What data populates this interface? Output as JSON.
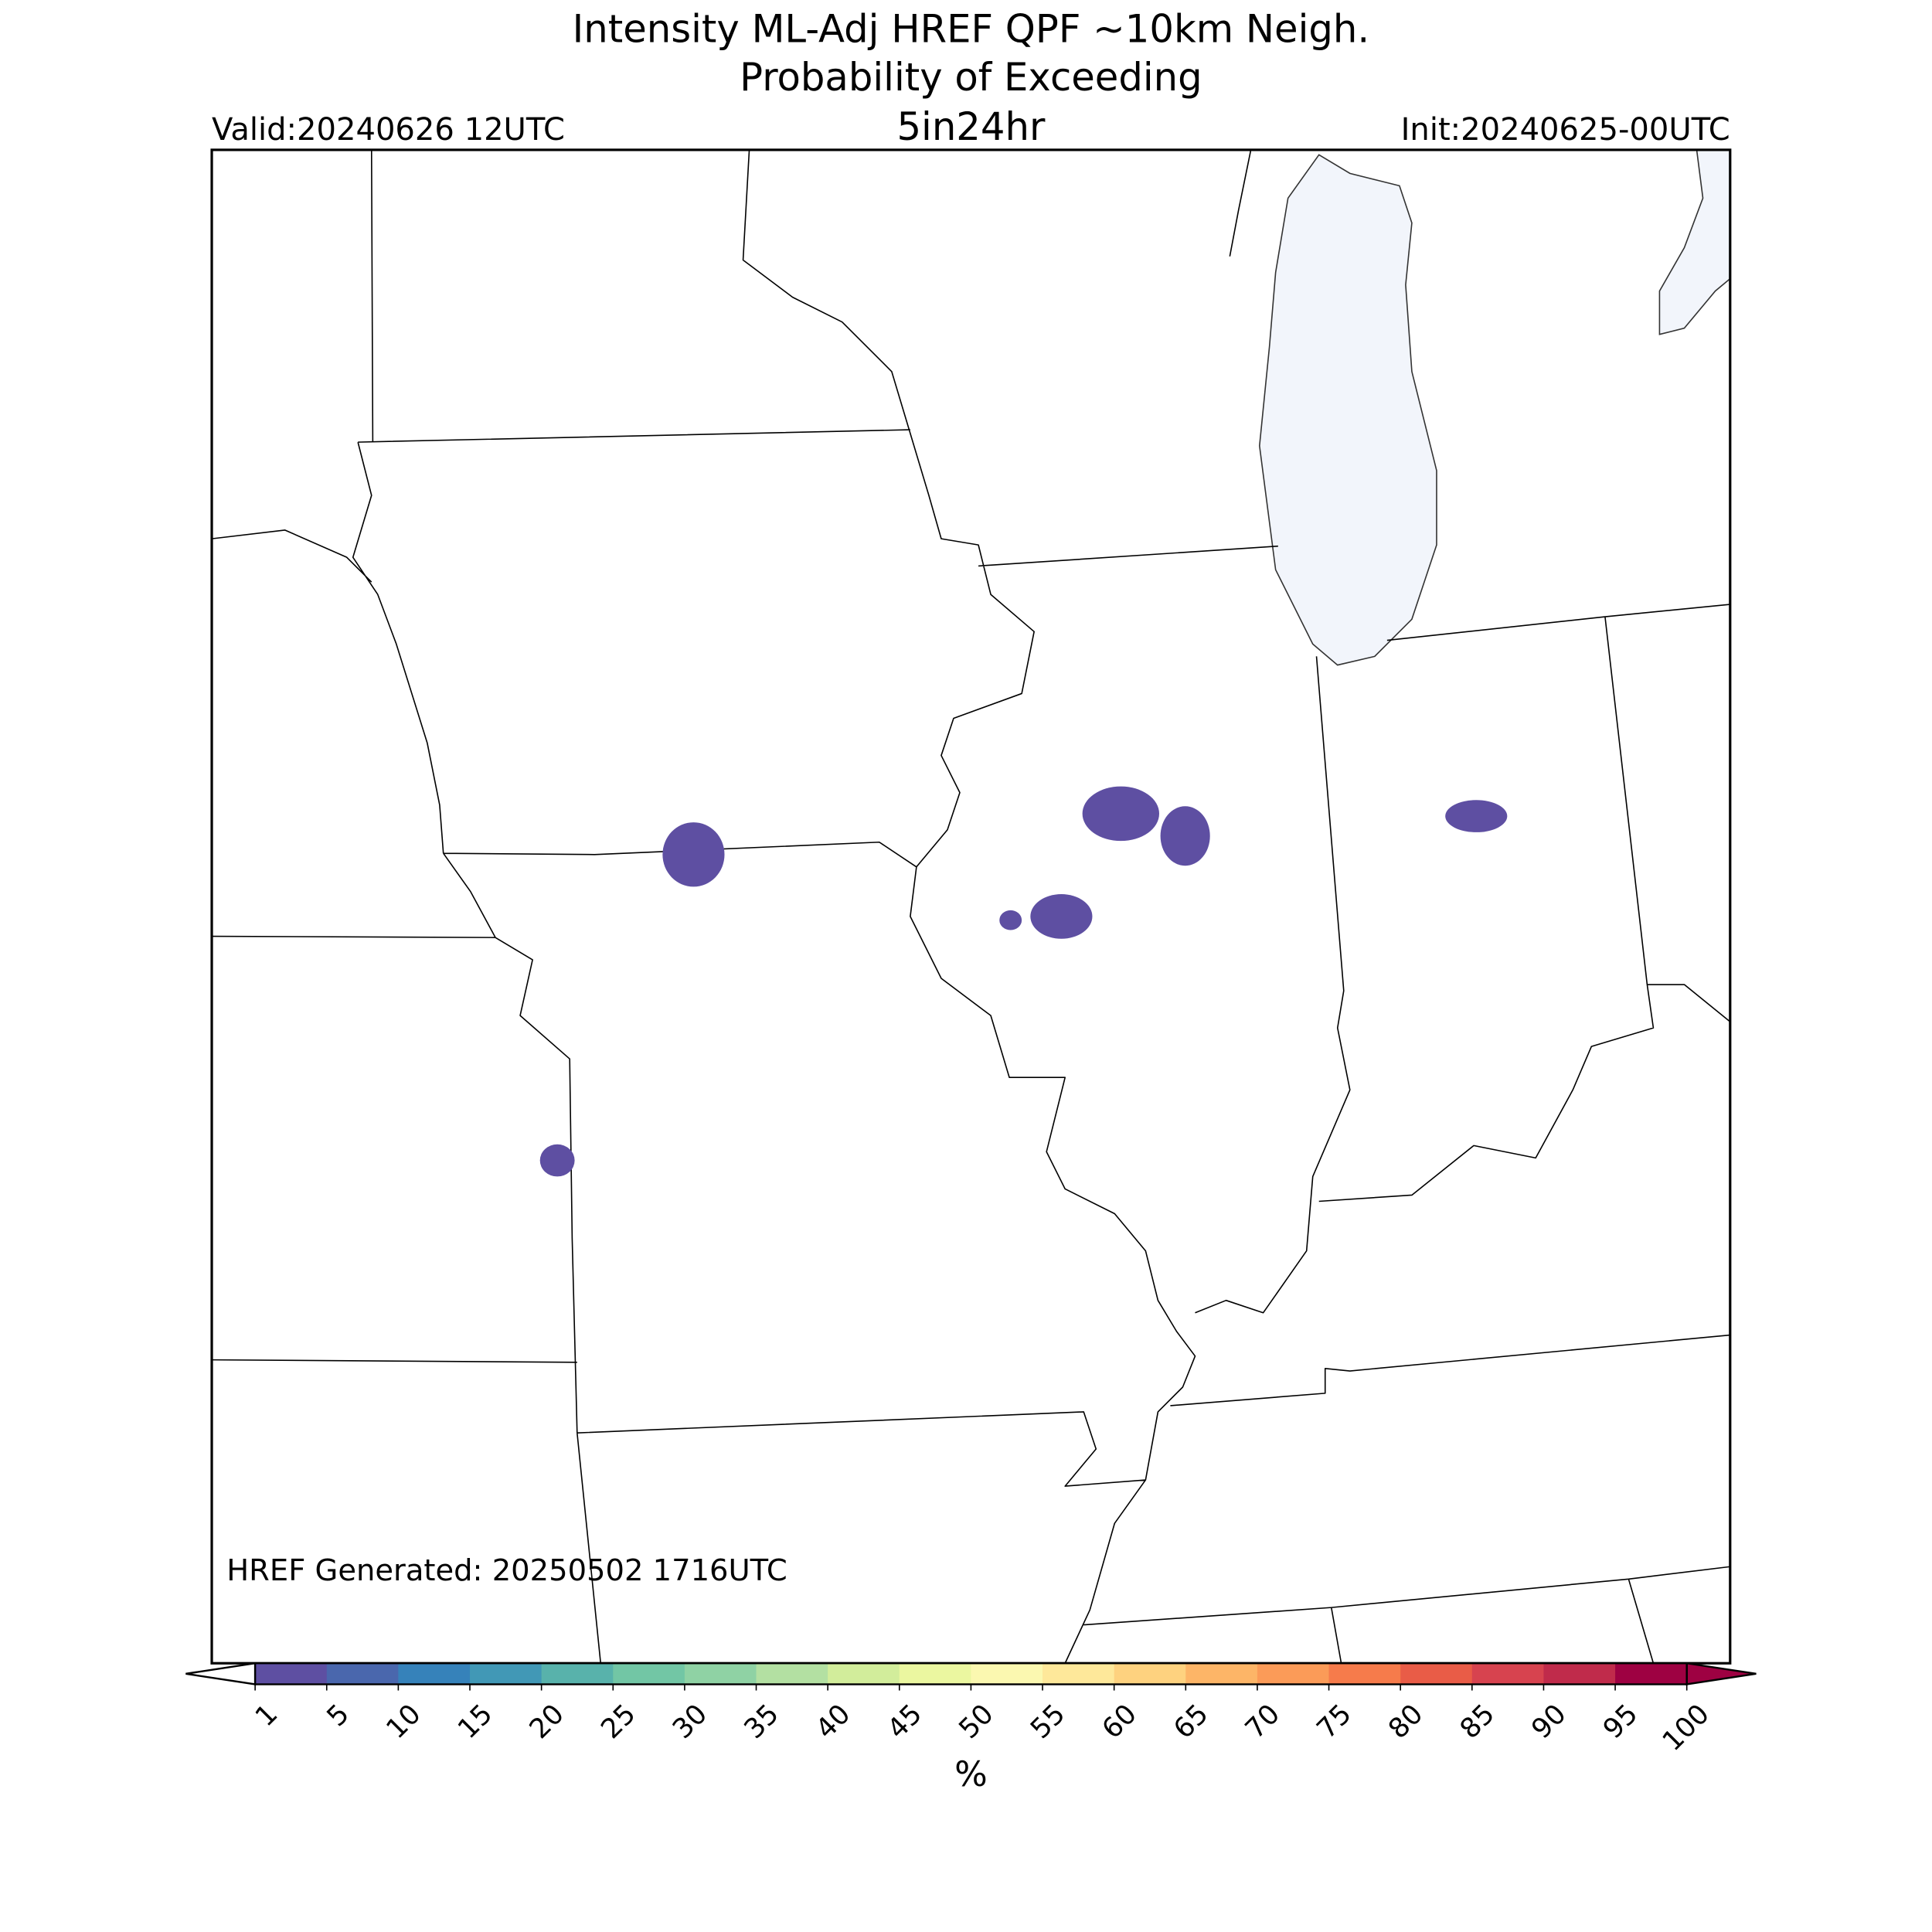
{
  "header": {
    "title_lines": [
      "Intensity ML-Adj HREF QPF ~10km Neigh.",
      "Probability of Exceeding",
      "5in24hr"
    ],
    "valid": "Valid:20240626 12UTC",
    "init": "Init:20240625-00UTC"
  },
  "map": {
    "generated": "HREF Generated: 20250502 1716UTC"
  },
  "colorbar": {
    "ticks": [
      1,
      5,
      10,
      15,
      20,
      25,
      30,
      35,
      40,
      45,
      50,
      55,
      60,
      65,
      70,
      75,
      80,
      85,
      90,
      95,
      100
    ],
    "colors": [
      "#5e4fa2",
      "#4a67ad",
      "#3682ba",
      "#4198b6",
      "#58b2ab",
      "#72c6a5",
      "#8fd2a4",
      "#b3e0a2",
      "#d2ed9b",
      "#ebf7a0",
      "#fbf8b0",
      "#fee89a",
      "#fed27f",
      "#fdb567",
      "#fb9b58",
      "#f67b4b",
      "#e95c47",
      "#d7434f",
      "#c02b4b",
      "#9e0142"
    ],
    "under_color": "#ffffff",
    "over_color": "#9e0142",
    "label": "%"
  }
}
